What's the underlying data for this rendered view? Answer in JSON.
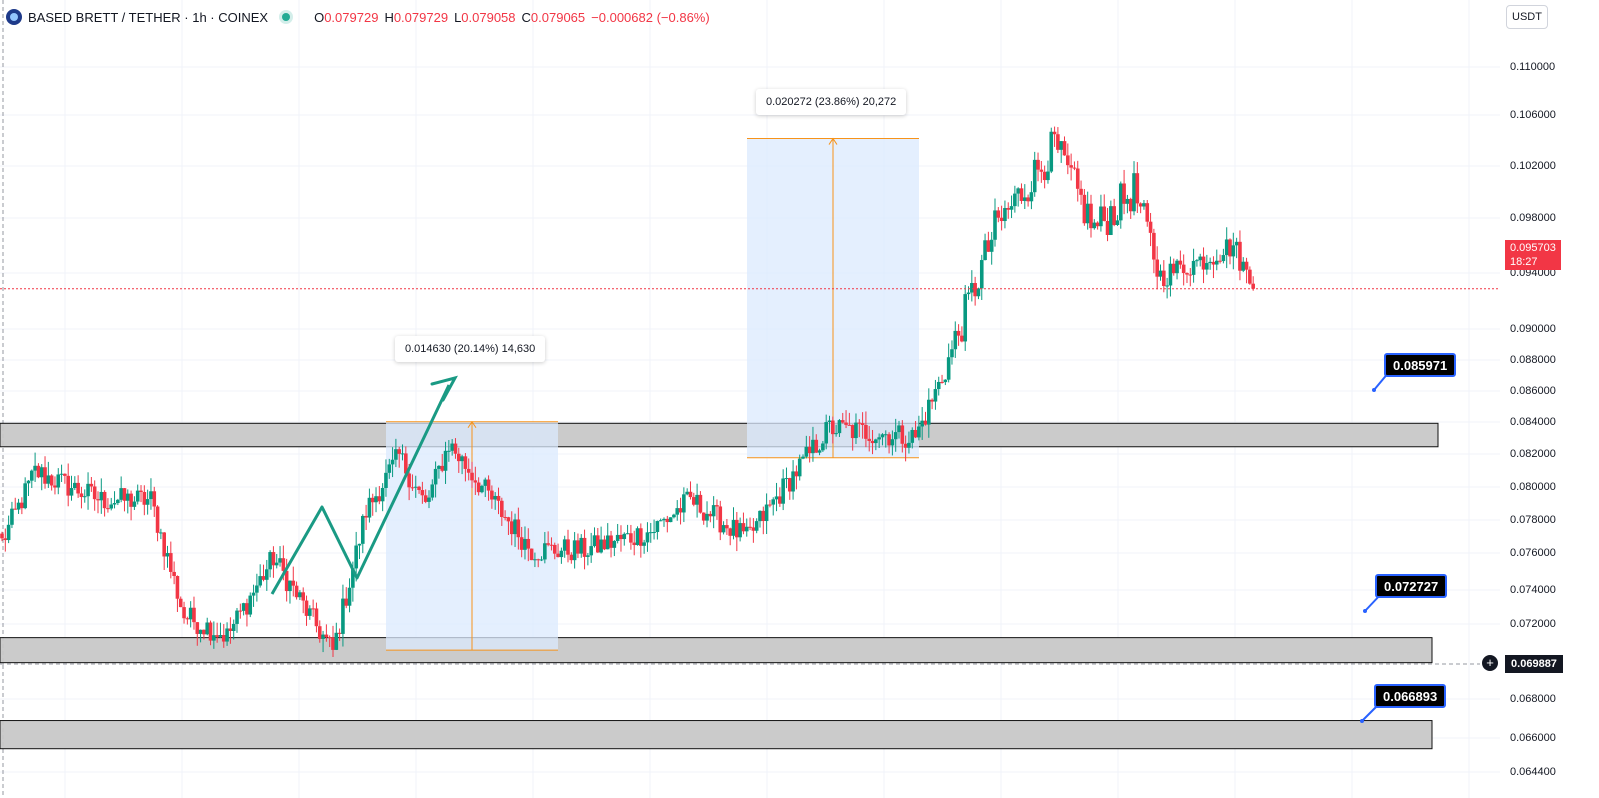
{
  "header": {
    "symbol": "BASED BRETT / TETHER · 1h · COINEX",
    "ohlc": [
      {
        "key": "O",
        "value": "0.079729"
      },
      {
        "key": "H",
        "value": "0.079729"
      },
      {
        "key": "L",
        "value": "0.079058"
      },
      {
        "key": "C",
        "value": "0.079065"
      }
    ],
    "change": "−0.000682 (−0.86%)"
  },
  "currency_button": "USDT",
  "price_axis": {
    "ticks": [
      "0.110000",
      "0.106000",
      "0.102000",
      "0.098000",
      "0.094000",
      "0.090000",
      "0.088000",
      "0.086000",
      "0.084000",
      "0.082000",
      "0.080000",
      "0.078000",
      "0.076000",
      "0.074000",
      "0.072000",
      "0.068000",
      "0.066000",
      "0.064400"
    ]
  },
  "last_price": {
    "price": "0.095703",
    "countdown": "18:27"
  },
  "crosshair": {
    "price": "0.069887"
  },
  "levels": [
    {
      "label": "0.085971"
    },
    {
      "label": "0.072727"
    },
    {
      "label": "0.066893"
    }
  ],
  "measurements": [
    {
      "label": "0.014630 (20.14%) 14,630"
    },
    {
      "label": "0.020272 (23.86%) 20,272"
    }
  ],
  "colors": {
    "up": "#089981",
    "down": "#f23645",
    "zone_fill": "#c8c8c8",
    "measure_fill": "#dbeafe",
    "measure_line": "#f7931a",
    "arrow": "#1a9a84",
    "callout_border": "#2962ff"
  },
  "chart_data": {
    "type": "candlestick",
    "timeframe": "1h",
    "approx_close_path": [
      {
        "i": 0,
        "close": 0.0795
      },
      {
        "i": 10,
        "close": 0.084
      },
      {
        "i": 30,
        "close": 0.0822
      },
      {
        "i": 45,
        "close": 0.0822
      },
      {
        "i": 55,
        "close": 0.0748
      },
      {
        "i": 68,
        "close": 0.0735
      },
      {
        "i": 82,
        "close": 0.0785
      },
      {
        "i": 93,
        "close": 0.0748
      },
      {
        "i": 100,
        "close": 0.0725
      },
      {
        "i": 110,
        "close": 0.0815
      },
      {
        "i": 120,
        "close": 0.085
      },
      {
        "i": 128,
        "close": 0.0818
      },
      {
        "i": 135,
        "close": 0.0858
      },
      {
        "i": 148,
        "close": 0.0822
      },
      {
        "i": 160,
        "close": 0.079
      },
      {
        "i": 176,
        "close": 0.079
      },
      {
        "i": 196,
        "close": 0.0802
      },
      {
        "i": 208,
        "close": 0.0822
      },
      {
        "i": 225,
        "close": 0.0797
      },
      {
        "i": 238,
        "close": 0.0835
      },
      {
        "i": 250,
        "close": 0.0868
      },
      {
        "i": 276,
        "close": 0.0862
      },
      {
        "i": 285,
        "close": 0.0905
      },
      {
        "i": 300,
        "close": 0.0995
      },
      {
        "i": 318,
        "close": 0.1048
      },
      {
        "i": 330,
        "close": 0.0995
      },
      {
        "i": 342,
        "close": 0.102
      },
      {
        "i": 350,
        "close": 0.0965
      },
      {
        "i": 362,
        "close": 0.0975
      },
      {
        "i": 372,
        "close": 0.0985
      },
      {
        "i": 378,
        "close": 0.0957
      }
    ],
    "horizontal_zones": [
      {
        "top": 0.0871,
        "bottom": 0.0856
      },
      {
        "top": 0.0734,
        "bottom": 0.0718
      },
      {
        "top": 0.0681,
        "bottom": 0.0663
      }
    ],
    "range_measures": [
      {
        "from": 0.0726,
        "to": 0.0872,
        "delta": 0.01463,
        "pct": 20.14
      },
      {
        "from": 0.0849,
        "to": 0.1053,
        "delta": 0.020272,
        "pct": 23.86
      }
    ],
    "y_range": [
      0.0643,
      0.1116
    ],
    "grid": true
  }
}
